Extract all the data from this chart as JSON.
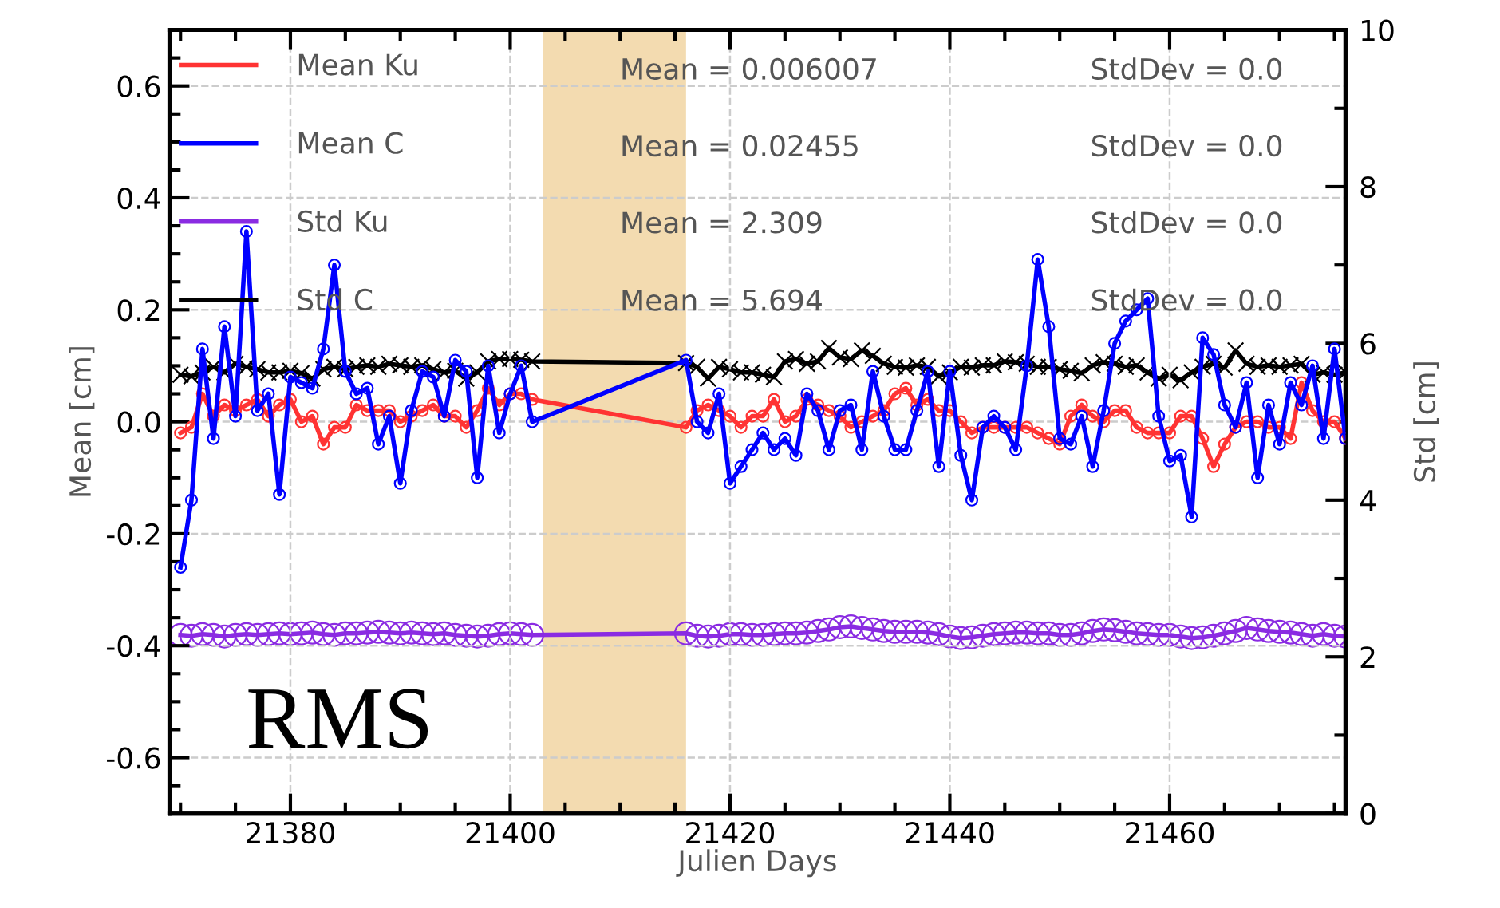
{
  "chart_data": {
    "type": "line",
    "xlabel": "Julien Days",
    "ylabel": "Mean [cm]",
    "y2label": "Std [cm]",
    "x": [
      21370,
      21371,
      21372,
      21373,
      21374,
      21375,
      21376,
      21377,
      21378,
      21379,
      21380,
      21381,
      21382,
      21383,
      21384,
      21385,
      21386,
      21387,
      21388,
      21389,
      21390,
      21391,
      21392,
      21393,
      21394,
      21395,
      21396,
      21397,
      21398,
      21399,
      21400,
      21401,
      21402,
      21416,
      21417,
      21418,
      21419,
      21420,
      21421,
      21422,
      21423,
      21424,
      21425,
      21426,
      21427,
      21428,
      21429,
      21430,
      21431,
      21432,
      21433,
      21434,
      21435,
      21436,
      21437,
      21438,
      21439,
      21440,
      21441,
      21442,
      21443,
      21444,
      21445,
      21446,
      21447,
      21448,
      21449,
      21450,
      21451,
      21452,
      21453,
      21454,
      21455,
      21456,
      21457,
      21458,
      21459,
      21460,
      21461,
      21462,
      21463,
      21464,
      21465,
      21466,
      21467,
      21468,
      21469,
      21470,
      21471,
      21472,
      21473,
      21474,
      21475,
      21476
    ],
    "series": [
      {
        "name": "Mean Ku",
        "color": "#ff3333",
        "marker": "circle",
        "values": [
          -0.02,
          -0.01,
          0.05,
          0.01,
          0.03,
          0.02,
          0.03,
          0.04,
          0.01,
          0.03,
          0.04,
          0.0,
          0.01,
          -0.04,
          -0.01,
          -0.01,
          0.03,
          0.02,
          0.02,
          0.02,
          0.0,
          0.01,
          0.02,
          0.03,
          0.01,
          0.01,
          -0.01,
          0.02,
          0.06,
          0.03,
          0.05,
          0.05,
          0.04,
          -0.01,
          0.02,
          0.03,
          0.02,
          0.01,
          -0.01,
          0.01,
          0.01,
          0.04,
          0.0,
          0.01,
          0.04,
          0.03,
          0.02,
          0.01,
          -0.01,
          0.0,
          0.01,
          0.02,
          0.05,
          0.06,
          0.03,
          0.04,
          0.02,
          0.02,
          0.0,
          -0.02,
          -0.01,
          -0.01,
          -0.01,
          -0.01,
          -0.01,
          -0.02,
          -0.03,
          -0.04,
          0.01,
          0.03,
          0.01,
          0.0,
          0.02,
          0.02,
          -0.01,
          -0.02,
          -0.02,
          -0.02,
          0.01,
          0.01,
          -0.03,
          -0.08,
          -0.04,
          -0.01,
          0.0,
          0.0,
          -0.01,
          -0.01,
          -0.03,
          0.07,
          0.02,
          0.0,
          0.0,
          -0.03
        ]
      },
      {
        "name": "Mean C",
        "color": "#0000ff",
        "marker": "circle",
        "values": [
          -0.26,
          -0.14,
          0.13,
          -0.03,
          0.17,
          0.01,
          0.34,
          0.02,
          0.05,
          -0.13,
          0.08,
          0.07,
          0.06,
          0.13,
          0.28,
          0.09,
          0.05,
          0.06,
          -0.04,
          0.01,
          -0.11,
          0.02,
          0.09,
          0.08,
          0.01,
          0.11,
          0.09,
          -0.1,
          0.1,
          -0.02,
          0.05,
          0.1,
          0.0,
          0.11,
          0.0,
          -0.02,
          0.05,
          -0.11,
          -0.08,
          -0.05,
          -0.02,
          -0.05,
          -0.03,
          -0.06,
          0.05,
          0.02,
          -0.05,
          0.02,
          0.03,
          -0.05,
          0.09,
          0.01,
          -0.05,
          -0.05,
          0.02,
          0.09,
          -0.08,
          0.09,
          -0.06,
          -0.14,
          -0.01,
          0.01,
          -0.01,
          -0.05,
          0.1,
          0.29,
          0.17,
          -0.03,
          -0.04,
          0.01,
          -0.08,
          0.02,
          0.14,
          0.18,
          0.2,
          0.22,
          0.01,
          -0.07,
          -0.06,
          -0.17,
          0.15,
          0.12,
          0.03,
          -0.01,
          0.07,
          -0.1,
          0.03,
          -0.04,
          0.07,
          0.03,
          0.1,
          -0.03,
          0.13,
          -0.03
        ]
      },
      {
        "name": "Std Ku",
        "color": "#8a2be2",
        "marker": "circle",
        "axis": "y2",
        "values": [
          2.28,
          2.27,
          2.29,
          2.28,
          2.26,
          2.28,
          2.29,
          2.28,
          2.29,
          2.3,
          2.29,
          2.3,
          2.31,
          2.29,
          2.28,
          2.3,
          2.3,
          2.31,
          2.32,
          2.31,
          2.3,
          2.31,
          2.3,
          2.29,
          2.3,
          2.28,
          2.27,
          2.26,
          2.27,
          2.29,
          2.3,
          2.29,
          2.28,
          2.3,
          2.27,
          2.26,
          2.27,
          2.29,
          2.29,
          2.28,
          2.28,
          2.29,
          2.3,
          2.3,
          2.31,
          2.33,
          2.35,
          2.38,
          2.39,
          2.37,
          2.35,
          2.33,
          2.32,
          2.32,
          2.32,
          2.31,
          2.29,
          2.26,
          2.24,
          2.25,
          2.27,
          2.29,
          2.3,
          2.31,
          2.31,
          2.3,
          2.3,
          2.28,
          2.28,
          2.3,
          2.33,
          2.35,
          2.34,
          2.32,
          2.3,
          2.29,
          2.28,
          2.28,
          2.26,
          2.24,
          2.25,
          2.27,
          2.3,
          2.33,
          2.37,
          2.35,
          2.33,
          2.32,
          2.31,
          2.29,
          2.27,
          2.29,
          2.27,
          2.26
        ]
      },
      {
        "name": "Std C",
        "color": "#000000",
        "marker": "cross",
        "axis": "y2",
        "values": [
          5.6,
          5.58,
          5.63,
          5.7,
          5.63,
          5.74,
          5.7,
          5.67,
          5.63,
          5.63,
          5.65,
          5.62,
          5.55,
          5.67,
          5.7,
          5.67,
          5.7,
          5.72,
          5.7,
          5.74,
          5.72,
          5.7,
          5.72,
          5.67,
          5.63,
          5.65,
          5.55,
          5.63,
          5.77,
          5.8,
          5.8,
          5.79,
          5.77,
          5.75,
          5.7,
          5.55,
          5.7,
          5.67,
          5.63,
          5.63,
          5.6,
          5.57,
          5.77,
          5.8,
          5.74,
          5.77,
          5.94,
          5.82,
          5.8,
          5.91,
          5.84,
          5.74,
          5.7,
          5.69,
          5.72,
          5.7,
          5.58,
          5.63,
          5.7,
          5.69,
          5.72,
          5.72,
          5.77,
          5.76,
          5.74,
          5.7,
          5.7,
          5.67,
          5.65,
          5.62,
          5.72,
          5.76,
          5.74,
          5.7,
          5.72,
          5.63,
          5.55,
          5.6,
          5.53,
          5.63,
          5.7,
          5.74,
          5.69,
          5.91,
          5.74,
          5.7,
          5.72,
          5.7,
          5.72,
          5.74,
          5.6,
          5.63,
          5.6,
          5.63
        ]
      }
    ],
    "xlim": [
      21369,
      21476
    ],
    "xticks": [
      21380,
      21400,
      21420,
      21440,
      21460,
      {
        "value": 21370,
        "label": null
      },
      {
        "value": 21375,
        "label": null
      },
      {
        "value": 21385,
        "label": null
      },
      {
        "value": 21390,
        "label": null
      },
      {
        "value": 21395,
        "label": null
      },
      {
        "value": 21405,
        "label": null
      },
      {
        "value": 21410,
        "label": null
      },
      {
        "value": 21415,
        "label": null
      },
      {
        "value": 21425,
        "label": null
      },
      {
        "value": 21430,
        "label": null
      },
      {
        "value": 21435,
        "label": null
      },
      {
        "value": 21445,
        "label": null
      },
      {
        "value": 21450,
        "label": null
      },
      {
        "value": 21455,
        "label": null
      },
      {
        "value": 21465,
        "label": null
      },
      {
        "value": 21470,
        "label": null
      },
      {
        "value": 21475,
        "label": null
      }
    ],
    "ylim": [
      -0.7,
      0.7
    ],
    "yticks": [
      -0.6,
      -0.4,
      -0.2,
      {
        "value": 0.0,
        "label": "0.0"
      },
      0.2,
      0.4,
      0.6,
      {
        "value": -0.65,
        "label": null
      },
      {
        "value": -0.55,
        "label": null
      },
      {
        "value": -0.5,
        "label": null
      },
      {
        "value": -0.45,
        "label": null
      },
      {
        "value": -0.35,
        "label": null
      },
      {
        "value": -0.3,
        "label": null
      },
      {
        "value": -0.25,
        "label": null
      },
      {
        "value": -0.15,
        "label": null
      },
      {
        "value": -0.1,
        "label": null
      },
      {
        "value": -0.05,
        "label": null
      },
      {
        "value": 0.05,
        "label": null
      },
      {
        "value": 0.1,
        "label": null
      },
      {
        "value": 0.15,
        "label": null
      },
      {
        "value": 0.25,
        "label": null
      },
      {
        "value": 0.3,
        "label": null
      },
      {
        "value": 0.35,
        "label": null
      },
      {
        "value": 0.45,
        "label": null
      },
      {
        "value": 0.5,
        "label": null
      },
      {
        "value": 0.55,
        "label": null
      },
      {
        "value": 0.65,
        "label": null
      }
    ],
    "y2lim": [
      0,
      10
    ],
    "y2ticks": [
      0,
      2,
      4,
      6,
      8,
      10,
      {
        "value": 1,
        "label": null
      },
      {
        "value": 3,
        "label": null
      },
      {
        "value": 5,
        "label": null
      },
      {
        "value": 7,
        "label": null
      },
      {
        "value": 9,
        "label": null
      }
    ],
    "bands": [
      {
        "axis": "x",
        "from": 21403,
        "to": 21416,
        "color": "#f3dbb0"
      }
    ],
    "grid": true,
    "legend": "top left",
    "annotations": [
      "Mean = 0.006007",
      "Mean = 0.02455",
      "Mean = 2.309",
      "Mean = 5.694",
      "StdDev = 0.0",
      "StdDev = 0.0",
      "StdDev = 0.0",
      "StdDev = 0.0",
      "RMS"
    ]
  }
}
